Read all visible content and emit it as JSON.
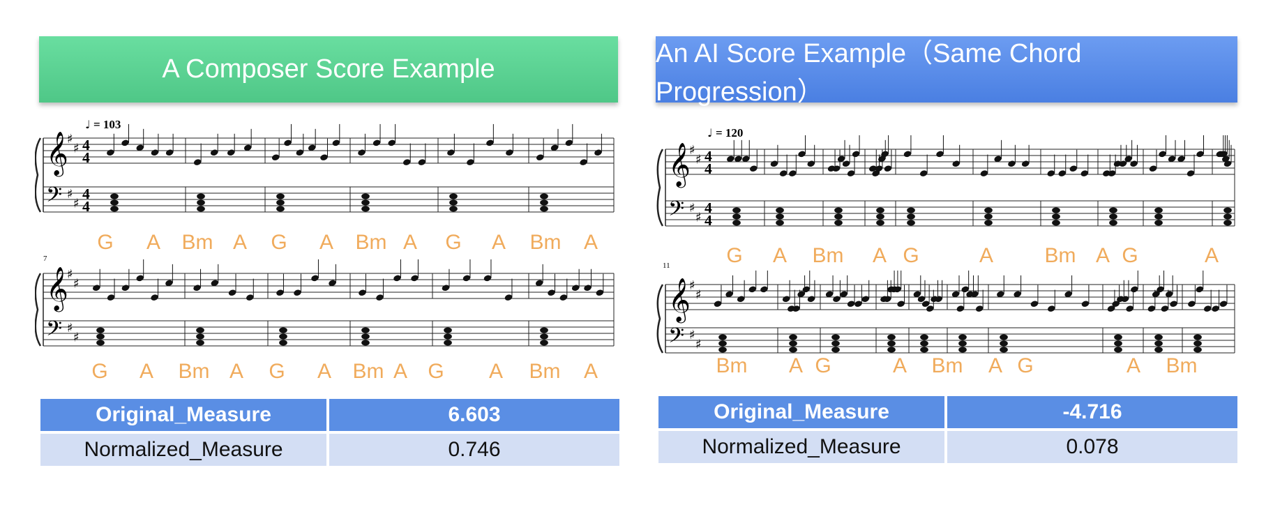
{
  "left": {
    "title": "A Composer Score Example",
    "tempo": "= 103",
    "system2_measure_number": "7",
    "chords_row1": [
      "G",
      "A",
      "Bm",
      "A",
      "G",
      "A",
      "Bm",
      "A",
      "G",
      "A",
      "Bm",
      "A"
    ],
    "chords_row2": [
      "G",
      "A",
      "Bm",
      "A",
      "G",
      "A",
      "Bm",
      "A",
      "G",
      "A",
      "Bm",
      "A"
    ],
    "table": {
      "header_label": "Original_Measure",
      "header_value": "6.603",
      "row_label": "Normalized_Measure",
      "row_value": "0.746"
    }
  },
  "right": {
    "title": "An AI Score Example（Same Chord Progression）",
    "tempo": "= 120",
    "system2_measure_number": "11",
    "chords_row1": [
      "G",
      "A",
      "Bm",
      "A",
      "G",
      "A",
      "Bm",
      "A",
      "G",
      "A"
    ],
    "chords_row2": [
      "Bm",
      "A",
      "G",
      "A",
      "Bm",
      "A",
      "G",
      "A",
      "Bm"
    ],
    "table": {
      "header_label": "Original_Measure",
      "header_value": "-4.716",
      "row_label": "Normalized_Measure",
      "row_value": "0.078"
    }
  },
  "colors": {
    "chord": "#f0ab5c",
    "banner_left": "#5fd394",
    "banner_right": "#5b8ee8",
    "table_header": "#5a8ee4",
    "table_row": "#d3def4"
  }
}
